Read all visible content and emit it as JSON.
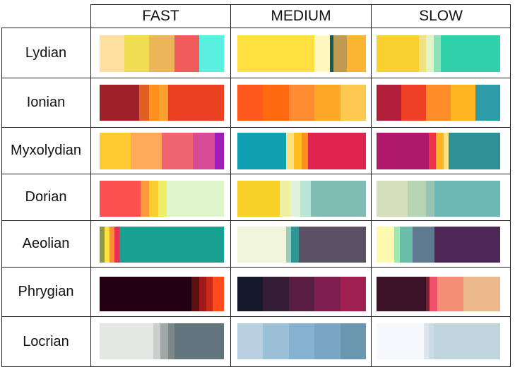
{
  "columns": [
    "FAST",
    "MEDIUM",
    "SLOW"
  ],
  "rows": [
    {
      "label": "Lydian",
      "palettes": [
        [
          [
            "#FFE0A0",
            20
          ],
          [
            "#F0DC50",
            20
          ],
          [
            "#EDB55A",
            20
          ],
          [
            "#F05A5A",
            20
          ],
          [
            "#5AF0E0",
            20
          ]
        ],
        [
          [
            "#FFE040",
            60
          ],
          [
            "#FFF8C0",
            12
          ],
          [
            "#145A5A",
            3
          ],
          [
            "#C09A50",
            10
          ],
          [
            "#FBB430",
            15
          ]
        ],
        [
          [
            "#F8D030",
            34
          ],
          [
            "#F0E080",
            6
          ],
          [
            "#E0F4C8",
            6
          ],
          [
            "#90E0B8",
            6
          ],
          [
            "#30D0A8",
            48
          ]
        ]
      ]
    },
    {
      "label": "Ionian",
      "palettes": [
        [
          [
            "#A0202A",
            32
          ],
          [
            "#E06020",
            8
          ],
          [
            "#FF9020",
            8
          ],
          [
            "#F8A030",
            7
          ],
          [
            "#E84020",
            45
          ]
        ],
        [
          [
            "#FF5A1E",
            20
          ],
          [
            "#FF6A10",
            20
          ],
          [
            "#FF8C32",
            20
          ],
          [
            "#FFA828",
            20
          ],
          [
            "#FFC850",
            20
          ]
        ],
        [
          [
            "#B01E3A",
            20
          ],
          [
            "#F04026",
            20
          ],
          [
            "#FF8C28",
            20
          ],
          [
            "#FFB420",
            20
          ],
          [
            "#2E9CA6",
            20
          ]
        ]
      ]
    },
    {
      "label": "Myxolydian",
      "palettes": [
        [
          [
            "#FFCA32",
            20
          ],
          [
            "#FFA85A",
            20
          ],
          [
            "#F06470",
            20
          ],
          [
            "#D84A96",
            14
          ],
          [
            "#A01EB8",
            6
          ]
        ],
        [
          [
            "#10A0B4",
            38
          ],
          [
            "#FFE080",
            6
          ],
          [
            "#FFBE20",
            6
          ],
          [
            "#FF9020",
            5
          ],
          [
            "#E02450",
            45
          ]
        ],
        [
          [
            "#B0186A",
            42
          ],
          [
            "#F03248",
            6
          ],
          [
            "#FFB428",
            6
          ],
          [
            "#FFE082",
            4
          ],
          [
            "#2E9094",
            42
          ]
        ]
      ]
    },
    {
      "label": "Dorian",
      "palettes": [
        [
          [
            "#FA5050",
            33
          ],
          [
            "#FF9A3C",
            7
          ],
          [
            "#FFCC30",
            7
          ],
          [
            "#F0EC64",
            7
          ],
          [
            "#E0F4CC",
            46
          ]
        ],
        [
          [
            "#F8D028",
            33
          ],
          [
            "#F0F0A0",
            8
          ],
          [
            "#E0F2DC",
            8
          ],
          [
            "#BAE4D4",
            8
          ],
          [
            "#7EBCB4",
            43
          ]
        ],
        [
          [
            "#D4E0BC",
            25
          ],
          [
            "#B4D4B4",
            15
          ],
          [
            "#96C4B4",
            7
          ],
          [
            "#6CB8B4",
            53
          ]
        ]
      ]
    },
    {
      "label": "Aeolian",
      "palettes": [
        [
          [
            "#8A9A48",
            4
          ],
          [
            "#FFE040",
            4
          ],
          [
            "#FF8C32",
            4
          ],
          [
            "#E83050",
            4
          ],
          [
            "#18A090",
            84
          ]
        ],
        [
          [
            "#F0F4D8",
            38
          ],
          [
            "#9ACCB8",
            4
          ],
          [
            "#2E9494",
            6
          ],
          [
            "#5A5064",
            52
          ]
        ],
        [
          [
            "#FFFAB0",
            14
          ],
          [
            "#A0E8B0",
            5
          ],
          [
            "#6CBCAA",
            10
          ],
          [
            "#5E7A90",
            18
          ],
          [
            "#502858",
            53
          ]
        ]
      ]
    },
    {
      "label": "Phrygian",
      "palettes": [
        [
          [
            "#220010",
            74
          ],
          [
            "#5A1010",
            6
          ],
          [
            "#9E1818",
            6
          ],
          [
            "#CC2818",
            5
          ],
          [
            "#FF4C1C",
            9
          ]
        ],
        [
          [
            "#141A2C",
            20
          ],
          [
            "#341C34",
            20
          ],
          [
            "#5A1E40",
            20
          ],
          [
            "#7E1E4C",
            20
          ],
          [
            "#A02052",
            20
          ]
        ],
        [
          [
            "#3C1226",
            40
          ],
          [
            "#7C2036",
            3
          ],
          [
            "#F05268",
            6
          ],
          [
            "#F49078",
            21
          ],
          [
            "#EAB88A",
            30
          ]
        ]
      ]
    },
    {
      "label": "Locrian",
      "palettes": [
        [
          [
            "#E4E8E4",
            43
          ],
          [
            "#CACECC",
            6
          ],
          [
            "#A0A8A8",
            6
          ],
          [
            "#7C8888",
            5
          ],
          [
            "#62747C",
            40
          ]
        ],
        [
          [
            "#B8D0E0",
            20
          ],
          [
            "#9CC0D8",
            20
          ],
          [
            "#86B2D0",
            20
          ],
          [
            "#7AA6C4",
            20
          ],
          [
            "#6A96B0",
            20
          ]
        ],
        [
          [
            "#F6F8FC",
            38
          ],
          [
            "#DCE4EC",
            4
          ],
          [
            "#CCDCE4",
            4
          ],
          [
            "#C0D4DC",
            54
          ]
        ]
      ]
    }
  ]
}
